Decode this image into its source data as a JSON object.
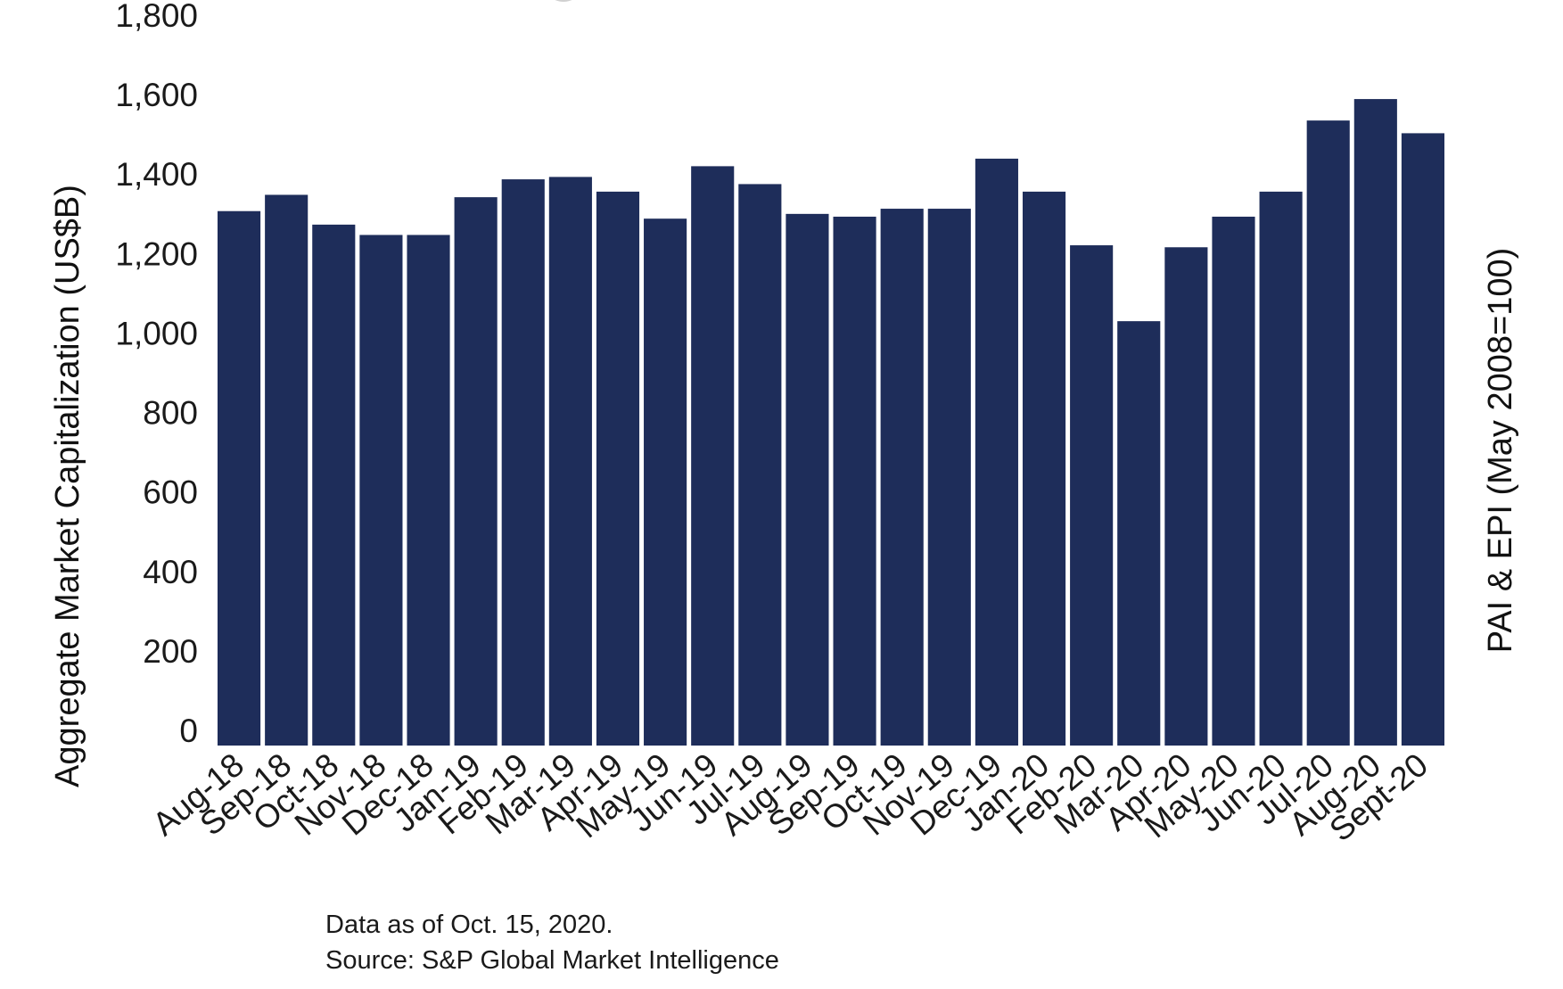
{
  "chart_data": {
    "type": "bar",
    "categories": [
      "Aug-18",
      "Sep-18",
      "Oct-18",
      "Nov-18",
      "Dec-18",
      "Jan-19",
      "Feb-19",
      "Mar-19",
      "Apr-19",
      "May-19",
      "Jun-19",
      "Jul-19",
      "Aug-19",
      "Sep-19",
      "Oct-19",
      "Nov-19",
      "Dec-19",
      "Jan-20",
      "Feb-20",
      "Mar-20",
      "Apr-20",
      "May-20",
      "Jun-20",
      "Jul-20",
      "Aug-20",
      "Sept-20"
    ],
    "series": [
      {
        "values": [
          1345,
          1386,
          1311,
          1285,
          1285,
          1380,
          1425,
          1431,
          1394,
          1326,
          1458,
          1413,
          1338,
          1331,
          1351,
          1351,
          1477,
          1394,
          1259,
          1068,
          1254,
          1331,
          1394,
          1573,
          1627,
          1541
        ],
        "color": "#1e2d5a"
      }
    ],
    "title": "",
    "xlabel": "",
    "ylabel": "Aggregate Market Capitalization (US$B)",
    "ylabel_right": "PAI & EPI (May 2008=100)",
    "ylim": [
      0,
      1800
    ],
    "yticks": [
      "0",
      "200",
      "400",
      "600",
      "800",
      "1,000",
      "1,200",
      "1,400",
      "1,600",
      "1,800"
    ],
    "grid": false,
    "legend": "none"
  },
  "notes": {
    "data_date": "Data as of Oct. 15, 2020.",
    "source": "Source: S&P Global Market Intelligence"
  }
}
